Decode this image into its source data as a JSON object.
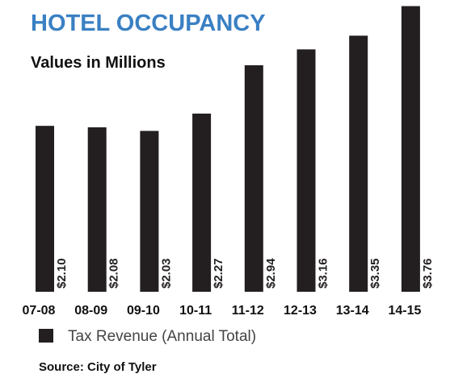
{
  "chart_data": {
    "type": "bar",
    "title": "HOTEL OCCUPANCY",
    "subtitle": "Values in Millions",
    "categories": [
      "07-08",
      "08-09",
      "09-10",
      "10-11",
      "11-12",
      "12-13",
      "13-14",
      "14-15"
    ],
    "series": [
      {
        "name": "Tax Revenue (Annual Total)",
        "color": "#231f20",
        "values": [
          2.1,
          2.08,
          2.03,
          2.27,
          2.94,
          3.16,
          3.35,
          3.76
        ],
        "value_labels": [
          "$2.10",
          "$2.08",
          "$2.03",
          "$2.27",
          "$2.94",
          "$3.16",
          "$3.35",
          "$3.76"
        ]
      }
    ],
    "ylim": [
      -0.2,
      3.8
    ],
    "source": "Source: City of Tyler"
  }
}
